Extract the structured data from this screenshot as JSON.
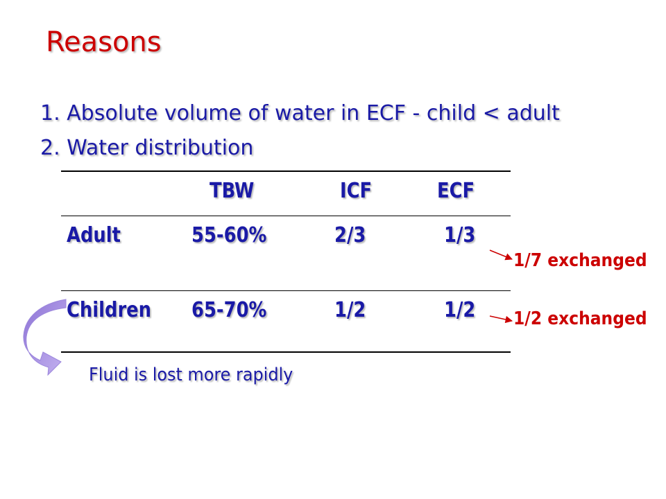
{
  "slide": {
    "title": "Reasons",
    "points": [
      "1. Absolute volume of water in ECF  - child < adult",
      "2. Water distribution"
    ],
    "table": {
      "headers": [
        "",
        "TBW",
        "ICF",
        "ECF"
      ],
      "rows": [
        {
          "label": "Adult",
          "tbw": "55-60%",
          "icf": "2/3",
          "ecf": "1/3"
        },
        {
          "label": "Children",
          "tbw": "65-70%",
          "icf": "1/2",
          "ecf": "1/2"
        }
      ]
    },
    "annotations": [
      "1/7 exchanged",
      "1/2 exchanged"
    ],
    "fluid_note": "Fluid is lost more rapidly"
  },
  "colors": {
    "title": "#cc0000",
    "body_text": "#1a1aa6",
    "annotation": "#cc0000",
    "curved_arrow": "#a58de0"
  }
}
